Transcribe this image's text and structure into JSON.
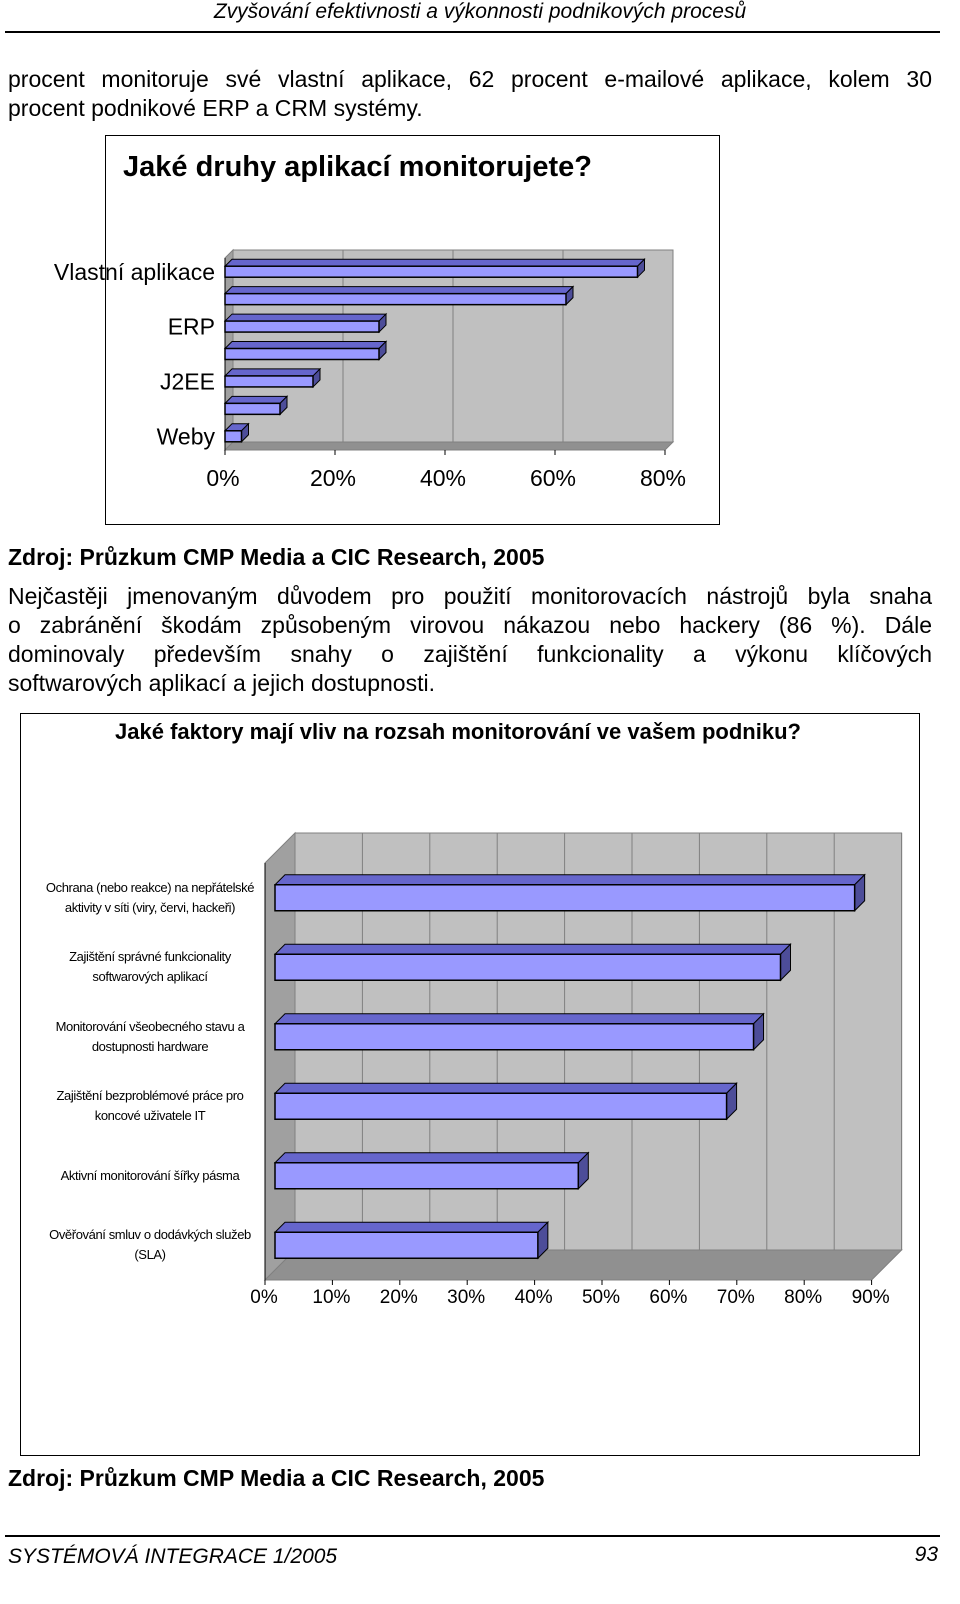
{
  "header": {
    "title": "Zvyšování efektivnosti a výkonnosti podnikových procesů"
  },
  "paragraphs": [
    {
      "lines": [
        "procent monitoruje své vlastní aplikace, 62 procent e-mailové aplikace, kolem 30",
        "procent podnikové ERP a CRM systémy."
      ]
    },
    {
      "lines": [
        "Nejčastěji jmenovaným důvodem pro použití monitorovacích nástrojů byla snaha",
        "o zabránění škodám způsobeným virovou nákazou nebo hackery (86 %). Dále",
        "dominovaly především snahy o zajištění funkcionality a výkonu klíčových",
        "softwarových aplikací a jejich dostupnosti."
      ]
    }
  ],
  "chart_data": [
    {
      "type": "bar",
      "orientation": "horizontal",
      "title": "Jaké druhy aplikací monitorujete?",
      "categories": [
        "Vlastní aplikace",
        null,
        "ERP",
        null,
        "J2EE",
        null,
        "Weby"
      ],
      "values": [
        75,
        62,
        28,
        28,
        16,
        10,
        3
      ],
      "color": "#9999ff",
      "xlim": [
        0,
        80
      ],
      "xticks": [
        {
          "value": 0,
          "label": "0%"
        },
        {
          "value": 20,
          "label": "20%"
        },
        {
          "value": 40,
          "label": "40%"
        },
        {
          "value": 60,
          "label": "60%"
        },
        {
          "value": 80,
          "label": "80%"
        }
      ],
      "grid": true
    },
    {
      "type": "bar",
      "orientation": "horizontal",
      "title": "Jaké faktory mají vliv na rozsah monitorování ve vašem podniku?",
      "categories": [
        "Ochrana (nebo reakce) na nepřátelské aktivity v síti (viry, červi, hackeři)",
        "Zajištění správné funkcionality softwarových aplikací",
        "Monitorování všeobecného stavu a dostupnosti hardware",
        "Zajištění bezproblémové práce pro koncové uživatele IT",
        "Aktivní monitorování šířky pásma",
        "Ověřování smluv o dodávkých služeb (SLA)"
      ],
      "values": [
        86,
        75,
        71,
        67,
        45,
        39
      ],
      "color": "#9999ff",
      "xlim": [
        0,
        90
      ],
      "xticks": [
        {
          "value": 0,
          "label": "0%"
        },
        {
          "value": 10,
          "label": "10%"
        },
        {
          "value": 20,
          "label": "20%"
        },
        {
          "value": 30,
          "label": "30%"
        },
        {
          "value": 40,
          "label": "40%"
        },
        {
          "value": 50,
          "label": "50%"
        },
        {
          "value": 60,
          "label": "60%"
        },
        {
          "value": 70,
          "label": "70%"
        },
        {
          "value": 80,
          "label": "80%"
        },
        {
          "value": 90,
          "label": "90%"
        }
      ],
      "grid": true
    }
  ],
  "sources": [
    "Zdroj: Průzkum CMP Media a CIC Research, 2005",
    "Zdroj: Průzkum CMP Media a CIC Research, 2005"
  ],
  "footer": {
    "left": "SYSTÉMOVÁ INTEGRACE 1/2005",
    "page": "93"
  }
}
